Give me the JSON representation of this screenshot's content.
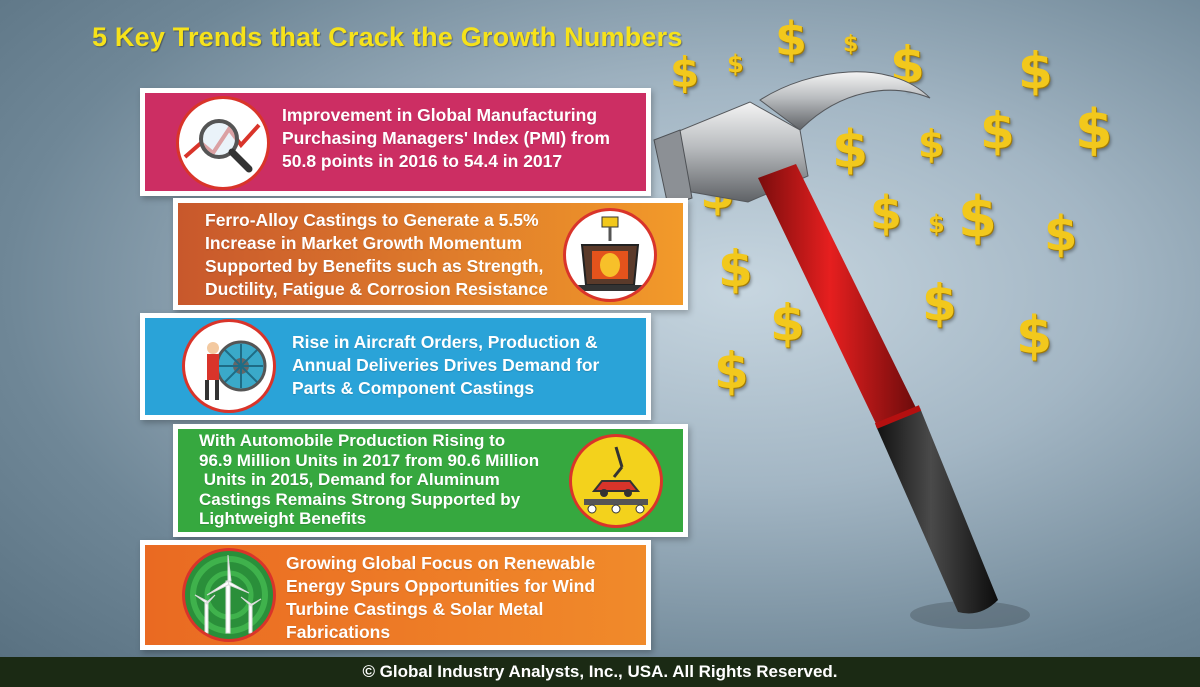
{
  "title": "5 Key Trends that Crack the Growth Numbers",
  "colors": {
    "title": "#f6e21a",
    "card1": "#cc2e63",
    "card2": "#e06e28",
    "card3": "#2aa3d8",
    "card4": "#36a83f",
    "card5": "#ea6a22",
    "dollar": "#f2c81c",
    "footer": "#1b2a14"
  },
  "trends": [
    {
      "lines": [
        "Improvement in Global Manufacturing",
        "Purchasing Managers' Index (PMI) from",
        "50.8 points in 2016 to 54.4 in 2017"
      ],
      "icon": "magnifier-chart-icon"
    },
    {
      "lines": [
        "Ferro-Alloy Castings to Generate a 5.5%",
        "Increase in Market Growth Momentum",
        "Supported by Benefits such as Strength,",
        "Ductility, Fatigue & Corrosion Resistance"
      ],
      "icon": "foundry-furnace-icon"
    },
    {
      "lines": [
        "Rise in Aircraft Orders, Production &",
        "Annual Deliveries Drives Demand for",
        "Parts & Component Castings"
      ],
      "icon": "aircraft-engine-worker-icon"
    },
    {
      "lines": [
        "With Automobile Production Rising to",
        "96.9 Million Units in 2017 from 90.6 Million",
        " Units in 2015, Demand for Aluminum",
        "Castings Remains Strong Supported by",
        "Lightweight Benefits"
      ],
      "icon": "car-assembly-line-icon"
    },
    {
      "lines": [
        "Growing Global Focus on Renewable",
        "Energy Spurs Opportunities for Wind",
        "Turbine Castings & Solar Metal",
        "Fabrications"
      ],
      "icon": "wind-turbine-icon"
    }
  ],
  "decor": {
    "dollar_symbol": "$",
    "hammer_icon": "hammer-icon"
  },
  "footer": "© Global Industry Analysts, Inc., USA. All Rights Reserved."
}
